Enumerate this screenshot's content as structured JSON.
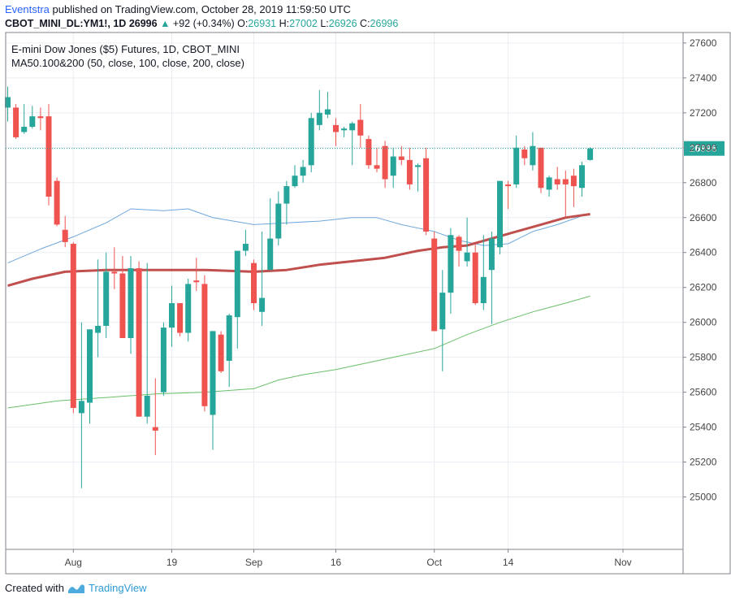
{
  "header": {
    "author": "Eventstra",
    "published": "published on TradingView.com, October 28, 2019 11:59:50 UTC",
    "symbol": "CBOT_MINI_DL:YM1!, 1D",
    "last": "26996",
    "arrow": "▲",
    "change": "+92 (+0.34%)",
    "o_label": "O:",
    "o_value": "26931",
    "h_label": "H:",
    "h_value": "27002",
    "l_label": "L:",
    "l_value": "26926",
    "c_label": "C:",
    "c_value": "26996"
  },
  "legend": {
    "title": "E-mini Dow Jones ($5) Futures, 1D, CBOT_MINI",
    "indicator": "MA50.100&200 (50, close, 100, close, 200, close)"
  },
  "footer": {
    "created_with": "Created with",
    "brand": "TradingView"
  },
  "colors": {
    "up": "#26a69a",
    "down": "#ef5350",
    "ma50": "#6fa8dc",
    "ma100": "#c0504d",
    "ma200": "#6abf69",
    "price_line": "#26a69a",
    "grid": "#e9edf2",
    "axis_text": "#444444"
  },
  "chart_data": {
    "type": "candlestick",
    "title": "E-mini Dow Jones ($5) Futures, 1D, CBOT_MINI",
    "ylim": [
      24700,
      27660
    ],
    "y_ticks": [
      25000,
      25200,
      25400,
      25600,
      25800,
      26000,
      26200,
      26400,
      26600,
      26800,
      27000,
      27200,
      27400,
      27600
    ],
    "x_ticks": [
      {
        "label": "Aug",
        "index": 8
      },
      {
        "label": "19",
        "index": 20
      },
      {
        "label": "Sep",
        "index": 30
      },
      {
        "label": "16",
        "index": 40
      },
      {
        "label": "Oct",
        "index": 52
      },
      {
        "label": "14",
        "index": 61
      },
      {
        "label": "Nov",
        "index": 75
      }
    ],
    "last_price": 26996,
    "last_price_label": "26996",
    "candles": [
      {
        "o": 27230,
        "h": 27350,
        "l": 27150,
        "c": 27290
      },
      {
        "o": 27230,
        "h": 27250,
        "l": 27050,
        "c": 27060
      },
      {
        "o": 27090,
        "h": 27250,
        "l": 27080,
        "c": 27120
      },
      {
        "o": 27120,
        "h": 27240,
        "l": 27110,
        "c": 27180
      },
      {
        "o": 27180,
        "h": 27230,
        "l": 27100,
        "c": 27170
      },
      {
        "o": 27180,
        "h": 27250,
        "l": 26670,
        "c": 26720
      },
      {
        "o": 26810,
        "h": 26830,
        "l": 26550,
        "c": 26560
      },
      {
        "o": 26530,
        "h": 26610,
        "l": 26430,
        "c": 26460
      },
      {
        "o": 26450,
        "h": 26460,
        "l": 25480,
        "c": 25510
      },
      {
        "o": 25480,
        "h": 26000,
        "l": 25050,
        "c": 25550
      },
      {
        "o": 25540,
        "h": 25950,
        "l": 25420,
        "c": 25960
      },
      {
        "o": 25940,
        "h": 26360,
        "l": 25800,
        "c": 25980
      },
      {
        "o": 25980,
        "h": 26400,
        "l": 25910,
        "c": 26290
      },
      {
        "o": 26290,
        "h": 26430,
        "l": 26190,
        "c": 26280
      },
      {
        "o": 26280,
        "h": 26380,
        "l": 25910,
        "c": 25910
      },
      {
        "o": 25910,
        "h": 26380,
        "l": 25820,
        "c": 26310
      },
      {
        "o": 26310,
        "h": 26350,
        "l": 25460,
        "c": 25460
      },
      {
        "o": 25460,
        "h": 26340,
        "l": 25420,
        "c": 25580
      },
      {
        "o": 25400,
        "h": 25680,
        "l": 25240,
        "c": 25380
      },
      {
        "o": 25600,
        "h": 26000,
        "l": 25580,
        "c": 25970
      },
      {
        "o": 25970,
        "h": 26210,
        "l": 25860,
        "c": 26110
      },
      {
        "o": 26110,
        "h": 26110,
        "l": 25920,
        "c": 25940
      },
      {
        "o": 25940,
        "h": 26250,
        "l": 25890,
        "c": 26220
      },
      {
        "o": 26240,
        "h": 26370,
        "l": 26180,
        "c": 26230
      },
      {
        "o": 26220,
        "h": 26270,
        "l": 25490,
        "c": 25520
      },
      {
        "o": 25470,
        "h": 25950,
        "l": 25270,
        "c": 25950
      },
      {
        "o": 25930,
        "h": 25950,
        "l": 25710,
        "c": 25720
      },
      {
        "o": 25780,
        "h": 26050,
        "l": 25630,
        "c": 26040
      },
      {
        "o": 26030,
        "h": 26400,
        "l": 25850,
        "c": 26410
      },
      {
        "o": 26410,
        "h": 26530,
        "l": 26380,
        "c": 26450
      },
      {
        "o": 26340,
        "h": 26360,
        "l": 26070,
        "c": 26110
      },
      {
        "o": 26060,
        "h": 26520,
        "l": 25980,
        "c": 26140
      },
      {
        "o": 26300,
        "h": 26710,
        "l": 26300,
        "c": 26480
      },
      {
        "o": 26480,
        "h": 26750,
        "l": 26440,
        "c": 26680
      },
      {
        "o": 26680,
        "h": 26810,
        "l": 26560,
        "c": 26780
      },
      {
        "o": 26780,
        "h": 26900,
        "l": 26770,
        "c": 26840
      },
      {
        "o": 26840,
        "h": 26930,
        "l": 26800,
        "c": 26890
      },
      {
        "o": 26900,
        "h": 27200,
        "l": 26860,
        "c": 27170
      },
      {
        "o": 27130,
        "h": 27330,
        "l": 27100,
        "c": 27200
      },
      {
        "o": 27190,
        "h": 27320,
        "l": 27170,
        "c": 27220
      },
      {
        "o": 27130,
        "h": 27170,
        "l": 27010,
        "c": 27090
      },
      {
        "o": 27100,
        "h": 27120,
        "l": 27060,
        "c": 27110
      },
      {
        "o": 27100,
        "h": 27150,
        "l": 26900,
        "c": 27140
      },
      {
        "o": 27160,
        "h": 27250,
        "l": 27000,
        "c": 27070
      },
      {
        "o": 27050,
        "h": 27070,
        "l": 26880,
        "c": 26900
      },
      {
        "o": 26900,
        "h": 27000,
        "l": 26860,
        "c": 26880
      },
      {
        "o": 27010,
        "h": 27040,
        "l": 26770,
        "c": 26820
      },
      {
        "o": 26840,
        "h": 27000,
        "l": 26770,
        "c": 26950
      },
      {
        "o": 26950,
        "h": 27010,
        "l": 26900,
        "c": 26930
      },
      {
        "o": 26930,
        "h": 27000,
        "l": 26760,
        "c": 26790
      },
      {
        "o": 26890,
        "h": 26910,
        "l": 26750,
        "c": 26900
      },
      {
        "o": 26940,
        "h": 27000,
        "l": 26500,
        "c": 26520
      },
      {
        "o": 26480,
        "h": 26520,
        "l": 25950,
        "c": 25950
      },
      {
        "o": 25960,
        "h": 26300,
        "l": 25720,
        "c": 26170
      },
      {
        "o": 26170,
        "h": 26540,
        "l": 26050,
        "c": 26500
      },
      {
        "o": 26490,
        "h": 26500,
        "l": 26320,
        "c": 26410
      },
      {
        "o": 26350,
        "h": 26600,
        "l": 26320,
        "c": 26400
      },
      {
        "o": 26400,
        "h": 26450,
        "l": 26100,
        "c": 26110
      },
      {
        "o": 26110,
        "h": 26500,
        "l": 26070,
        "c": 26260
      },
      {
        "o": 26300,
        "h": 26520,
        "l": 25990,
        "c": 26480
      },
      {
        "o": 26430,
        "h": 26810,
        "l": 26390,
        "c": 26810
      },
      {
        "o": 26790,
        "h": 26810,
        "l": 26650,
        "c": 26780
      },
      {
        "o": 26790,
        "h": 27070,
        "l": 26770,
        "c": 27000
      },
      {
        "o": 26990,
        "h": 27010,
        "l": 26900,
        "c": 26940
      },
      {
        "o": 26900,
        "h": 27090,
        "l": 26870,
        "c": 27010
      },
      {
        "o": 27000,
        "h": 27000,
        "l": 26740,
        "c": 26770
      },
      {
        "o": 26760,
        "h": 26840,
        "l": 26720,
        "c": 26830
      },
      {
        "o": 26820,
        "h": 26890,
        "l": 26760,
        "c": 26790
      },
      {
        "o": 26820,
        "h": 26870,
        "l": 26600,
        "c": 26790
      },
      {
        "o": 26840,
        "h": 26880,
        "l": 26660,
        "c": 26780
      },
      {
        "o": 26770,
        "h": 26920,
        "l": 26720,
        "c": 26900
      },
      {
        "o": 26930,
        "h": 27002,
        "l": 26926,
        "c": 26996
      }
    ],
    "series": [
      {
        "key": "ma50",
        "values": [
          {
            "i": 0,
            "v": 26340
          },
          {
            "i": 4,
            "v": 26420
          },
          {
            "i": 8,
            "v": 26490
          },
          {
            "i": 12,
            "v": 26570
          },
          {
            "i": 15,
            "v": 26650
          },
          {
            "i": 19,
            "v": 26640
          },
          {
            "i": 22,
            "v": 26650
          },
          {
            "i": 25,
            "v": 26600
          },
          {
            "i": 30,
            "v": 26560
          },
          {
            "i": 34,
            "v": 26570
          },
          {
            "i": 38,
            "v": 26580
          },
          {
            "i": 42,
            "v": 26600
          },
          {
            "i": 45,
            "v": 26600
          },
          {
            "i": 48,
            "v": 26560
          },
          {
            "i": 52,
            "v": 26520
          },
          {
            "i": 55,
            "v": 26470
          },
          {
            "i": 58,
            "v": 26440
          },
          {
            "i": 61,
            "v": 26450
          },
          {
            "i": 64,
            "v": 26520
          },
          {
            "i": 67,
            "v": 26560
          },
          {
            "i": 70,
            "v": 26610
          },
          {
            "i": 71,
            "v": 26620
          }
        ]
      },
      {
        "key": "ma100",
        "values": [
          {
            "i": 0,
            "v": 26210
          },
          {
            "i": 3,
            "v": 26250
          },
          {
            "i": 7,
            "v": 26290
          },
          {
            "i": 12,
            "v": 26300
          },
          {
            "i": 18,
            "v": 26300
          },
          {
            "i": 24,
            "v": 26300
          },
          {
            "i": 30,
            "v": 26290
          },
          {
            "i": 34,
            "v": 26300
          },
          {
            "i": 38,
            "v": 26330
          },
          {
            "i": 42,
            "v": 26350
          },
          {
            "i": 46,
            "v": 26370
          },
          {
            "i": 50,
            "v": 26410
          },
          {
            "i": 53,
            "v": 26430
          },
          {
            "i": 56,
            "v": 26440
          },
          {
            "i": 59,
            "v": 26480
          },
          {
            "i": 62,
            "v": 26520
          },
          {
            "i": 65,
            "v": 26560
          },
          {
            "i": 68,
            "v": 26600
          },
          {
            "i": 71,
            "v": 26620
          }
        ]
      },
      {
        "key": "ma200",
        "values": [
          {
            "i": 0,
            "v": 25510
          },
          {
            "i": 6,
            "v": 25550
          },
          {
            "i": 12,
            "v": 25570
          },
          {
            "i": 18,
            "v": 25590
          },
          {
            "i": 24,
            "v": 25600
          },
          {
            "i": 30,
            "v": 25620
          },
          {
            "i": 33,
            "v": 25670
          },
          {
            "i": 36,
            "v": 25700
          },
          {
            "i": 40,
            "v": 25730
          },
          {
            "i": 44,
            "v": 25770
          },
          {
            "i": 48,
            "v": 25810
          },
          {
            "i": 52,
            "v": 25850
          },
          {
            "i": 56,
            "v": 25930
          },
          {
            "i": 60,
            "v": 26000
          },
          {
            "i": 64,
            "v": 26060
          },
          {
            "i": 68,
            "v": 26110
          },
          {
            "i": 71,
            "v": 26150
          }
        ]
      }
    ]
  }
}
